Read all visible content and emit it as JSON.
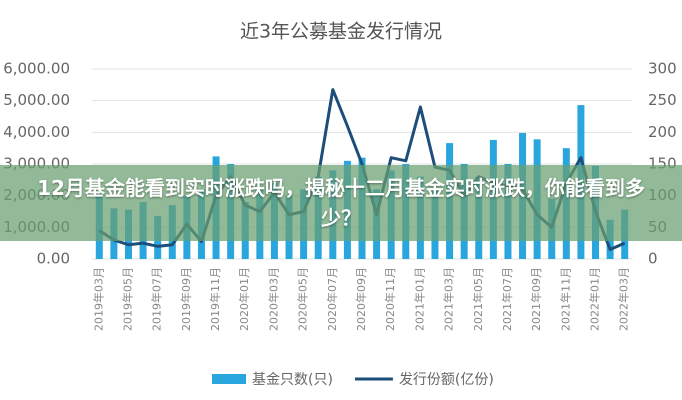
{
  "chart_data": {
    "type": "bar-line",
    "title": "近3年公募基金发行情况",
    "categories": [
      "2019年03月",
      null,
      "2019年05月",
      null,
      "2019年07月",
      null,
      "2019年09月",
      null,
      "2019年11月",
      null,
      "2020年01月",
      null,
      "2020年03月",
      null,
      "2020年05月",
      null,
      "2020年07月",
      null,
      "2020年09月",
      null,
      "2020年11月",
      null,
      "2021年01月",
      null,
      "2021年03月",
      null,
      "2021年05月",
      null,
      "2021年07月",
      null,
      "2021年09月",
      null,
      "2021年11月",
      null,
      "2022年01月",
      null,
      "2022年03月"
    ],
    "series": [
      {
        "name": "基金只数(只)",
        "kind": "bar",
        "axis": "y2",
        "color": "#2aa6df",
        "values": [
          100,
          80,
          78,
          90,
          68,
          85,
          100,
          110,
          162,
          150,
          90,
          110,
          120,
          100,
          110,
          130,
          140,
          155,
          160,
          110,
          140,
          150,
          130,
          110,
          183,
          150,
          130,
          188,
          150,
          199,
          189,
          95,
          175,
          243,
          147,
          62,
          78
        ]
      },
      {
        "name": "发行份额(亿份)",
        "kind": "line",
        "color": "#1d4e79",
        "values": [
          900,
          600,
          450,
          500,
          400,
          450,
          1100,
          550,
          2000,
          2600,
          1700,
          1500,
          2100,
          1400,
          1500,
          2600,
          5350,
          4200,
          3000,
          1400,
          3200,
          3100,
          4800,
          2900,
          2800,
          2000,
          2600,
          2400,
          2300,
          2200,
          1400,
          1000,
          2400,
          3200,
          1500,
          300,
          500
        ]
      }
    ],
    "ylim": [
      0,
      6000
    ],
    "yticks": [
      {
        "value": 0,
        "label": "0.00"
      },
      {
        "value": 1000,
        "label": "1,000.00"
      },
      {
        "value": 2000,
        "label": "2,000.00"
      },
      {
        "value": 3000,
        "label": "3,000.00"
      },
      {
        "value": 4000,
        "label": "4,000.00"
      },
      {
        "value": 5000,
        "label": "5,000.00"
      },
      {
        "value": 6000,
        "label": "6,000.00"
      }
    ],
    "y2lim": [
      0,
      300
    ],
    "y2ticks": [
      0,
      50,
      100,
      150,
      200,
      250,
      300
    ],
    "grid": true,
    "legend": "bottom"
  },
  "banner": {
    "text": "12月基金能看到实时涨跌吗，揭秘十二月基金实时涨跌，你能看到多少？"
  }
}
